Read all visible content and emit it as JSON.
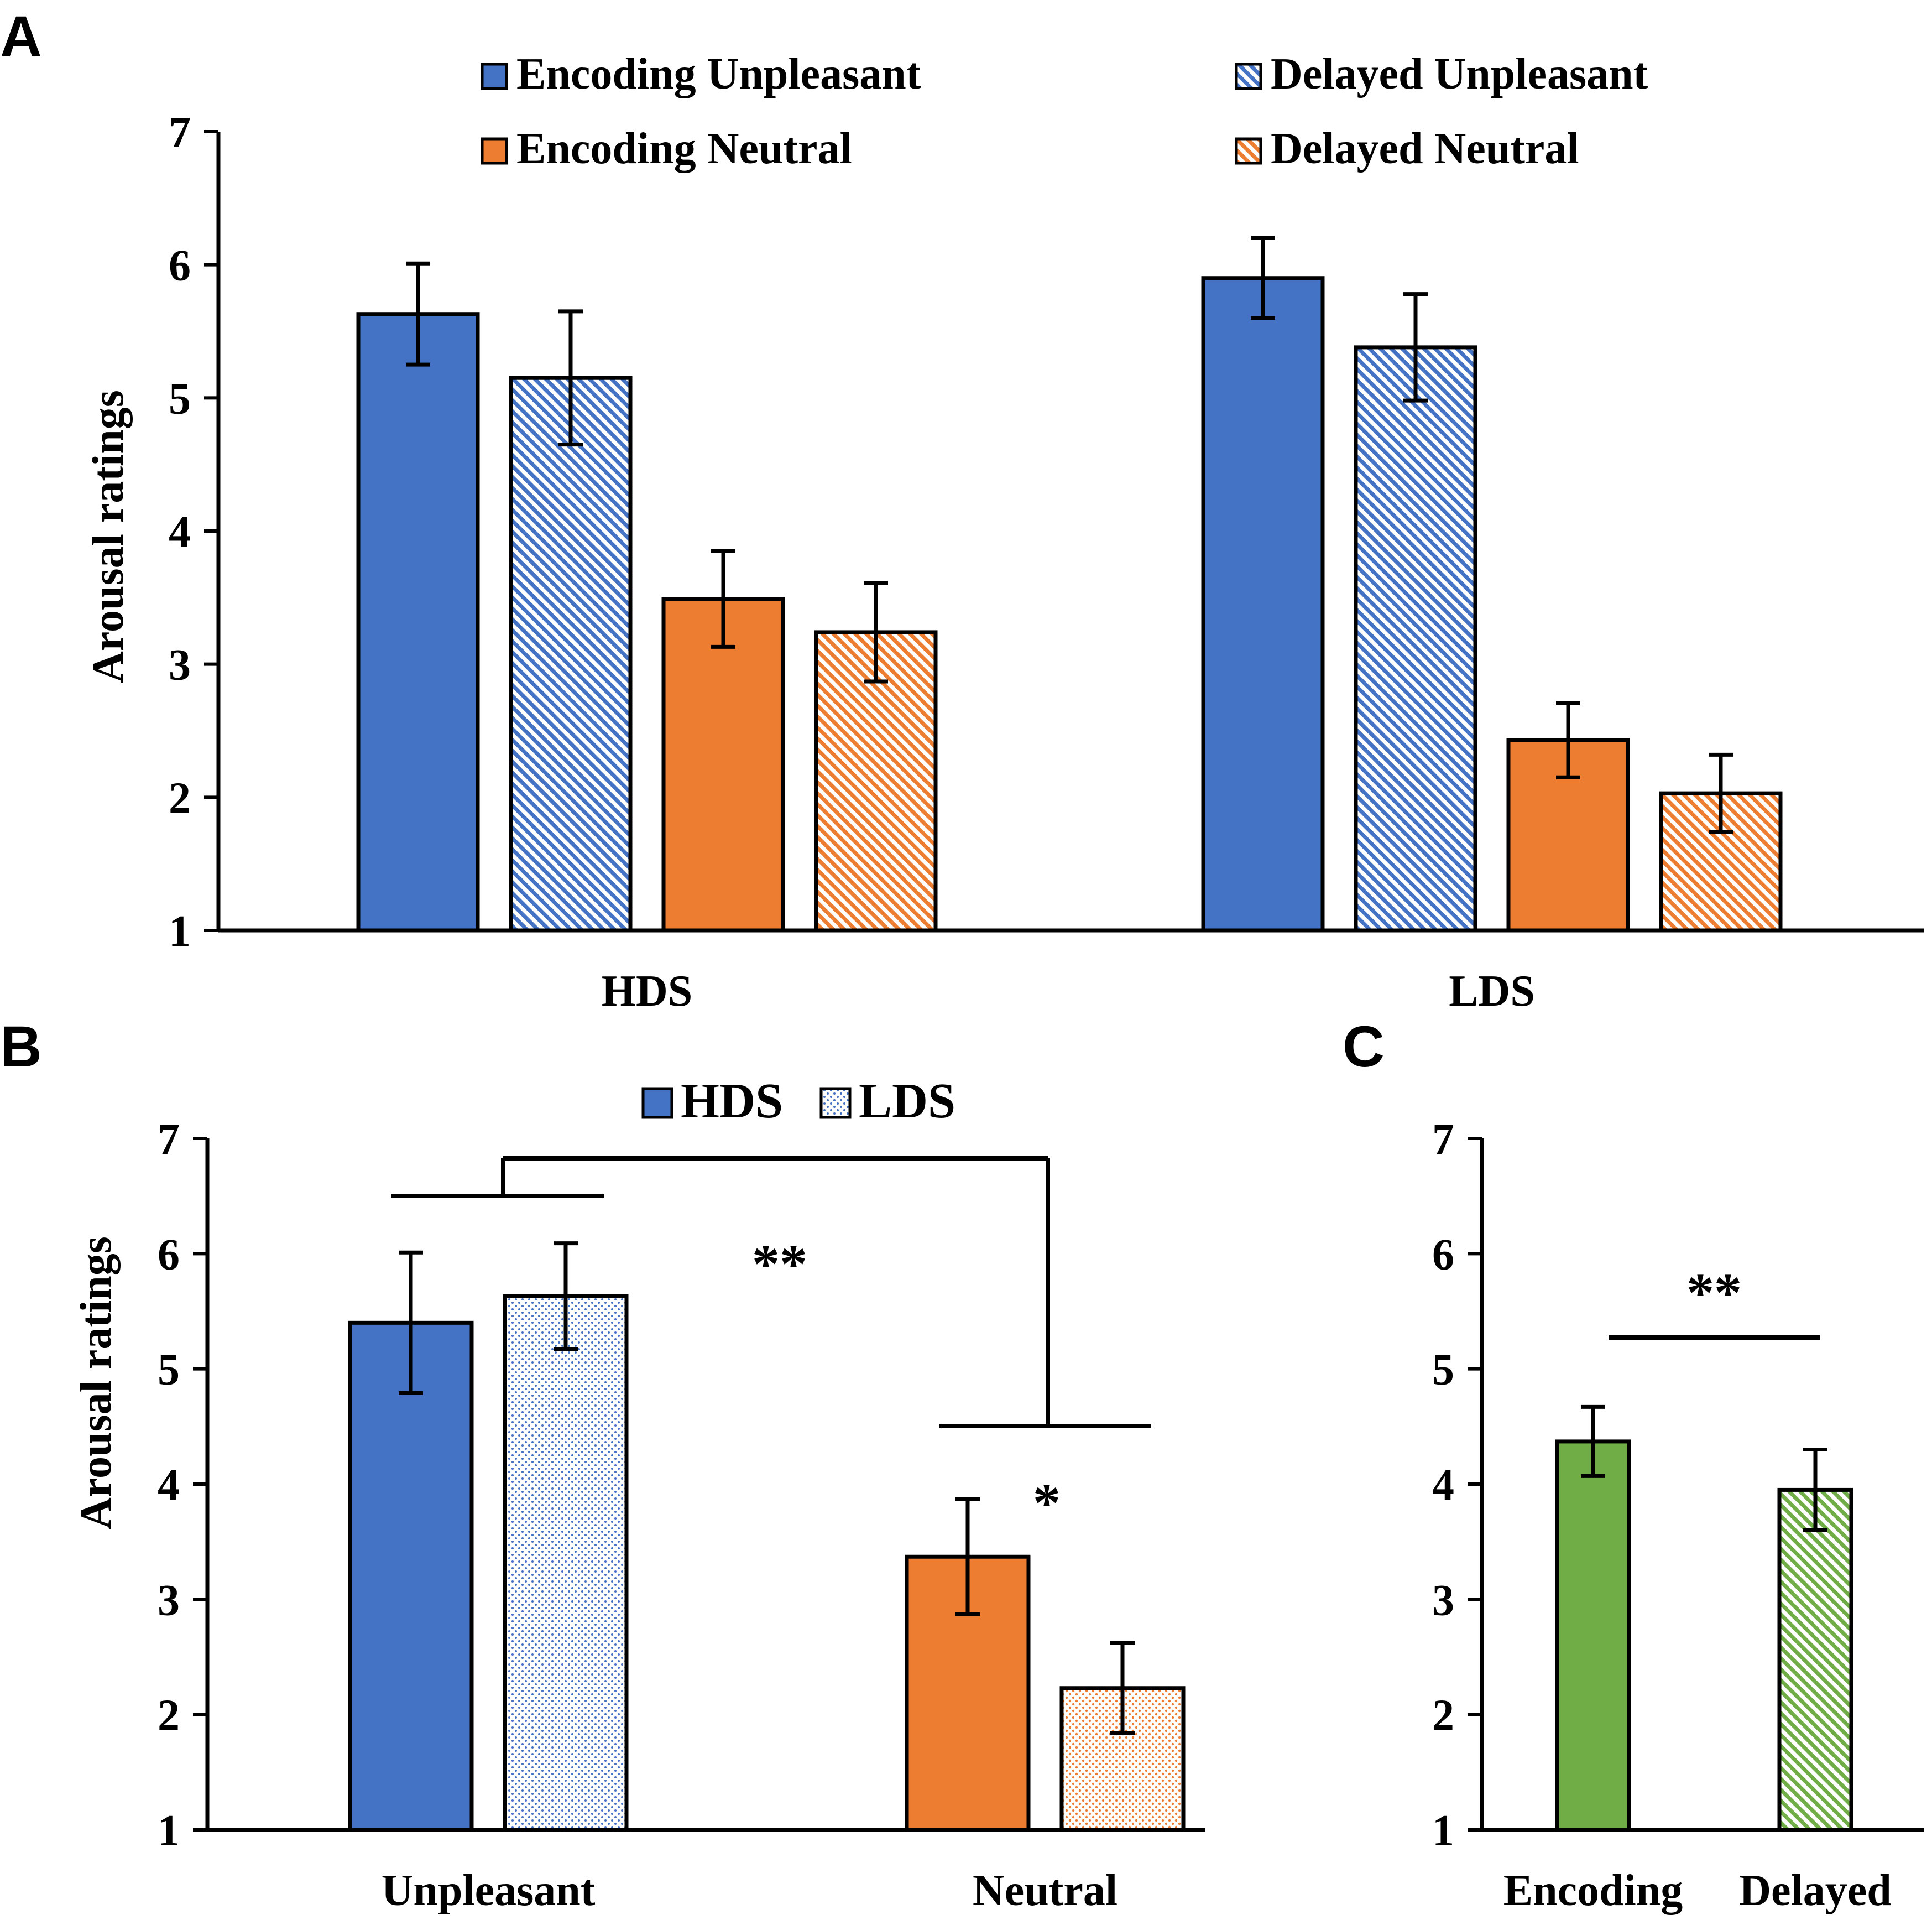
{
  "colors": {
    "blue": "#4472C4",
    "orange": "#ED7D31",
    "green": "#70AD47",
    "outline": "#000000",
    "background": "#ffffff"
  },
  "chart_data": [
    {
      "panel": "A",
      "type": "bar",
      "ylabel": "Arousal ratings",
      "xlabel": "",
      "ylim": [
        1,
        7
      ],
      "yticks": [
        "1",
        "2",
        "3",
        "4",
        "5",
        "6",
        "7"
      ],
      "categories": [
        "HDS",
        "LDS"
      ],
      "series": [
        {
          "name": "Encoding Unpleasant",
          "color": "#4472C4",
          "pattern": "solid",
          "values": [
            5.63,
            5.9
          ],
          "errors": [
            0.38,
            0.3
          ]
        },
        {
          "name": "Delayed Unpleasant",
          "color": "#4472C4",
          "pattern": "hatch",
          "values": [
            5.15,
            5.38
          ],
          "errors": [
            0.5,
            0.4
          ]
        },
        {
          "name": "Encoding Neutral",
          "color": "#ED7D31",
          "pattern": "solid",
          "values": [
            3.49,
            2.43
          ],
          "errors": [
            0.36,
            0.28
          ]
        },
        {
          "name": "Delayed Neutral",
          "color": "#ED7D31",
          "pattern": "hatch",
          "values": [
            3.24,
            2.03
          ],
          "errors": [
            0.37,
            0.29
          ]
        }
      ],
      "legend_position": "top"
    },
    {
      "panel": "B",
      "type": "bar",
      "ylabel": "Arousal ratings",
      "xlabel": "",
      "ylim": [
        1,
        7
      ],
      "yticks": [
        "1",
        "2",
        "3",
        "4",
        "5",
        "6",
        "7"
      ],
      "categories": [
        "Unpleasant",
        "Neutral"
      ],
      "series": [
        {
          "name": "HDS",
          "pattern": "solid",
          "colors": [
            "#4472C4",
            "#ED7D31"
          ],
          "values": [
            5.4,
            3.37
          ],
          "errors": [
            0.61,
            0.5
          ]
        },
        {
          "name": "LDS",
          "pattern": "dots",
          "colors": [
            "#4472C4",
            "#ED7D31"
          ],
          "values": [
            5.63,
            2.23
          ],
          "errors": [
            0.46,
            0.39
          ]
        }
      ],
      "legend_position": "top",
      "annotations": [
        {
          "text": "**",
          "meaning": "Unpleasant vs Neutral"
        },
        {
          "text": "*",
          "meaning": "HDS vs LDS within Neutral"
        }
      ]
    },
    {
      "panel": "C",
      "type": "bar",
      "ylabel": "",
      "xlabel": "",
      "ylim": [
        1,
        7
      ],
      "yticks": [
        "1",
        "2",
        "3",
        "4",
        "5",
        "6",
        "7"
      ],
      "categories": [
        "Encoding",
        "Delayed"
      ],
      "values": [
        4.37,
        3.95
      ],
      "errors": [
        0.3,
        0.35
      ],
      "color": "#70AD47",
      "patterns": [
        "solid",
        "hatch"
      ],
      "annotations": [
        {
          "text": "**",
          "meaning": "Encoding vs Delayed"
        }
      ]
    }
  ]
}
